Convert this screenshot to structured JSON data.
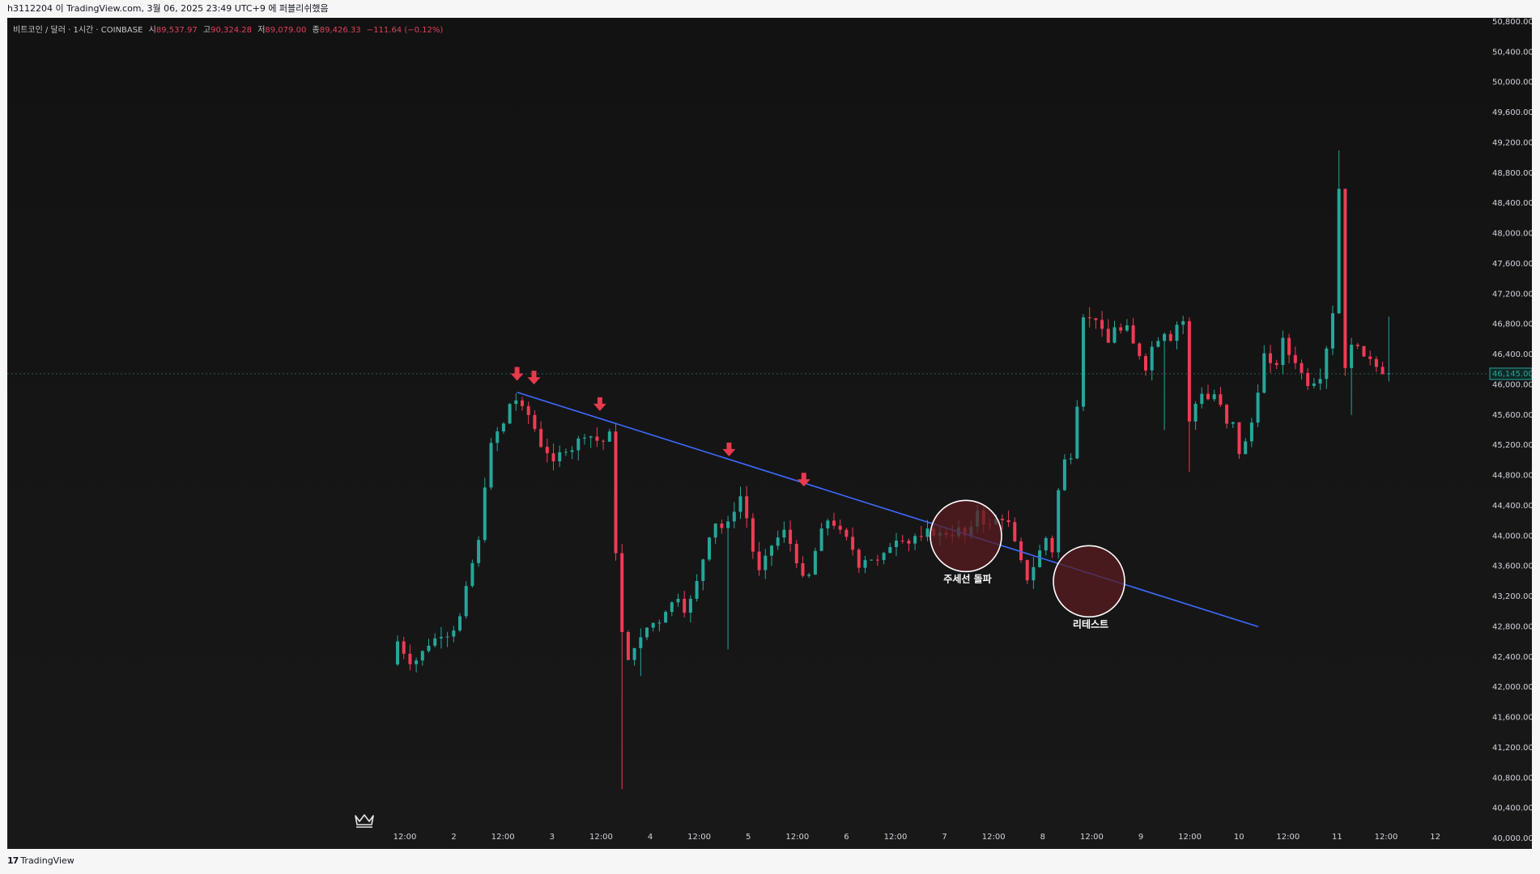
{
  "header": {
    "publish_info": "h3112204 이 TradingView.com, 3월 06, 2025 23:49 UTC+9 에 퍼블리쉬했음"
  },
  "legend": {
    "symbol": "비트코인 / 달러 · 1시간 · COINBASE",
    "open_label": "시",
    "open_value": "89,537.97",
    "high_label": "고",
    "high_value": "90,324.28",
    "low_label": "저",
    "low_value": "89,079.00",
    "close_label": "종",
    "close_value": "89,426.33",
    "change": "−111.64 (−0.12%)"
  },
  "footer": {
    "brand": "TradingView",
    "logo": "17"
  },
  "colors": {
    "up": "#26a69a",
    "down": "#ef3b55",
    "trendline": "#3d6bff",
    "arrow": "#e8394d",
    "circle_fill": "#5a1c22",
    "circle_stroke": "#ffffff",
    "price_tag": "#26a69a"
  },
  "chart_data": {
    "type": "candlestick",
    "y_axis": {
      "ticks": [
        "50,800.00",
        "50,400.00",
        "50,000.00",
        "49,600.00",
        "49,200.00",
        "48,800.00",
        "48,400.00",
        "48,000.00",
        "47,600.00",
        "47,200.00",
        "46,800.00",
        "46,400.00",
        "46,000.00",
        "45,600.00",
        "45,200.00",
        "44,800.00",
        "44,400.00",
        "44,000.00",
        "43,600.00",
        "43,200.00",
        "42,800.00",
        "42,400.00",
        "42,000.00",
        "41,600.00",
        "41,200.00",
        "40,800.00",
        "40,400.00",
        "40,000.00"
      ],
      "min": 40000,
      "max": 50800,
      "last_price_label": "46,145.00",
      "last_price": 46145
    },
    "x_axis": {
      "ticks": [
        "12:00",
        "2",
        "12:00",
        "3",
        "12:00",
        "4",
        "12:00",
        "5",
        "12:00",
        "6",
        "12:00",
        "7",
        "12:00",
        "8",
        "12:00",
        "9",
        "12:00",
        "10",
        "12:00",
        "11",
        "12:00",
        "12"
      ]
    },
    "path_points": [
      [
        0,
        42300
      ],
      [
        8,
        42650
      ],
      [
        16,
        42400
      ],
      [
        24,
        42300
      ],
      [
        34,
        42450
      ],
      [
        44,
        42600
      ],
      [
        56,
        42700
      ],
      [
        64,
        42700
      ],
      [
        72,
        42800
      ],
      [
        80,
        43000
      ],
      [
        88,
        43600
      ],
      [
        96,
        43700
      ],
      [
        104,
        44600
      ],
      [
        112,
        45200
      ],
      [
        120,
        45400
      ],
      [
        128,
        45500
      ],
      [
        136,
        45900
      ],
      [
        144,
        45700
      ],
      [
        152,
        45650
      ],
      [
        160,
        45450
      ],
      [
        168,
        45200
      ],
      [
        176,
        45100
      ],
      [
        184,
        44900
      ],
      [
        192,
        45200
      ],
      [
        200,
        45100
      ],
      [
        208,
        45250
      ],
      [
        218,
        45350
      ],
      [
        228,
        45300
      ],
      [
        236,
        45200
      ],
      [
        244,
        45400
      ],
      [
        248,
        45200
      ],
      [
        252,
        43800
      ],
      [
        258,
        42800
      ],
      [
        264,
        42300
      ],
      [
        270,
        42400
      ],
      [
        276,
        42700
      ],
      [
        282,
        42600
      ],
      [
        290,
        42900
      ],
      [
        298,
        42800
      ],
      [
        306,
        43000
      ],
      [
        314,
        43100
      ],
      [
        322,
        43200
      ],
      [
        330,
        43000
      ],
      [
        338,
        43200
      ],
      [
        346,
        43500
      ],
      [
        354,
        43900
      ],
      [
        362,
        44200
      ],
      [
        372,
        44100
      ],
      [
        382,
        44200
      ],
      [
        390,
        44600
      ],
      [
        398,
        44300
      ],
      [
        406,
        43800
      ],
      [
        412,
        43500
      ],
      [
        420,
        43700
      ],
      [
        428,
        43900
      ],
      [
        436,
        44000
      ],
      [
        444,
        44100
      ],
      [
        450,
        43800
      ],
      [
        458,
        43600
      ],
      [
        464,
        43350
      ],
      [
        470,
        43500
      ],
      [
        476,
        43800
      ],
      [
        484,
        44100
      ],
      [
        492,
        44250
      ],
      [
        500,
        44100
      ],
      [
        508,
        44000
      ],
      [
        516,
        43900
      ],
      [
        524,
        43600
      ],
      [
        532,
        43700
      ],
      [
        540,
        43700
      ],
      [
        548,
        43650
      ],
      [
        556,
        43800
      ],
      [
        564,
        43950
      ],
      [
        572,
        44000
      ],
      [
        580,
        43900
      ],
      [
        588,
        44000
      ],
      [
        596,
        43950
      ],
      [
        604,
        44100
      ],
      [
        612,
        44000
      ],
      [
        620,
        44050
      ],
      [
        628,
        44000
      ],
      [
        636,
        44100
      ],
      [
        644,
        44000
      ],
      [
        652,
        44100
      ],
      [
        658,
        44350
      ],
      [
        664,
        44200
      ],
      [
        670,
        44100
      ],
      [
        676,
        44200
      ],
      [
        684,
        44250
      ],
      [
        692,
        44200
      ],
      [
        700,
        43900
      ],
      [
        706,
        43700
      ],
      [
        712,
        43400
      ],
      [
        718,
        43500
      ],
      [
        724,
        43700
      ],
      [
        730,
        43850
      ],
      [
        736,
        44000
      ],
      [
        742,
        43800
      ],
      [
        746,
        44300
      ],
      [
        750,
        44700
      ],
      [
        754,
        45100
      ],
      [
        758,
        44900
      ],
      [
        764,
        45100
      ],
      [
        768,
        45400
      ],
      [
        772,
        46100
      ],
      [
        776,
        46900
      ],
      [
        780,
        47000
      ],
      [
        786,
        46800
      ],
      [
        792,
        46900
      ],
      [
        798,
        46700
      ],
      [
        804,
        46500
      ],
      [
        810,
        46800
      ],
      [
        818,
        46700
      ],
      [
        826,
        46750
      ],
      [
        834,
        46500
      ],
      [
        840,
        46400
      ],
      [
        846,
        46300
      ],
      [
        850,
        46000
      ],
      [
        854,
        46500
      ],
      [
        860,
        46600
      ],
      [
        868,
        46700
      ],
      [
        876,
        46600
      ],
      [
        882,
        46800
      ],
      [
        890,
        46850
      ],
      [
        894,
        45500
      ],
      [
        898,
        45500
      ],
      [
        904,
        45800
      ],
      [
        910,
        45900
      ],
      [
        918,
        45800
      ],
      [
        926,
        45900
      ],
      [
        934,
        45600
      ],
      [
        940,
        45400
      ],
      [
        946,
        45500
      ],
      [
        950,
        45300
      ],
      [
        954,
        44900
      ],
      [
        958,
        45200
      ],
      [
        964,
        45400
      ],
      [
        968,
        45600
      ],
      [
        974,
        46000
      ],
      [
        980,
        46400
      ],
      [
        986,
        46300
      ],
      [
        992,
        46000
      ],
      [
        998,
        46850
      ],
      [
        1002,
        46500
      ],
      [
        1008,
        46400
      ],
      [
        1016,
        46300
      ],
      [
        1024,
        46100
      ],
      [
        1030,
        46000
      ],
      [
        1036,
        46050
      ],
      [
        1042,
        46100
      ],
      [
        1048,
        46200
      ],
      [
        1052,
        46800
      ],
      [
        1058,
        47000
      ],
      [
        1064,
        48600
      ],
      [
        1068,
        47000
      ],
      [
        1072,
        46000
      ],
      [
        1078,
        46500
      ],
      [
        1084,
        46600
      ],
      [
        1090,
        46300
      ],
      [
        1096,
        46400
      ],
      [
        1104,
        46300
      ],
      [
        1110,
        46200
      ],
      [
        1116,
        46145
      ]
    ],
    "trendline": {
      "label": "",
      "start_price": 45900,
      "end_price": 42800
    },
    "annotations": [
      {
        "type": "circle",
        "label": "주세선 돌파",
        "price": 44000
      },
      {
        "type": "circle",
        "label": "리테스트",
        "price": 43400
      },
      {
        "type": "arrow-down",
        "label": "",
        "price": 46000
      },
      {
        "type": "arrow-down",
        "label": "",
        "price": 45950
      },
      {
        "type": "arrow-down",
        "label": "",
        "price": 45600
      },
      {
        "type": "arrow-down",
        "label": "",
        "price": 45000
      },
      {
        "type": "arrow-down",
        "label": "",
        "price": 44600
      }
    ]
  }
}
